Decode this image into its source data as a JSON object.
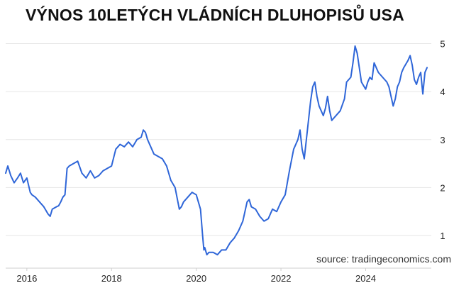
{
  "chart_data": {
    "type": "line",
    "title": "VÝNOS 10LETÝCH VLÁDNÍCH DLUHOPISŮ USA",
    "source": "source: tradingeconomics.com",
    "xlabel": "",
    "ylabel": "",
    "xlim": [
      2015.5,
      2025.55
    ],
    "ylim": [
      0.35,
      5.2
    ],
    "x_ticks": [
      {
        "value": 2016,
        "label": "2016"
      },
      {
        "value": 2018,
        "label": "2018"
      },
      {
        "value": 2020,
        "label": "2020"
      },
      {
        "value": 2022,
        "label": "2022"
      },
      {
        "value": 2024,
        "label": "2024"
      }
    ],
    "y_ticks": [
      {
        "value": 1,
        "label": "1"
      },
      {
        "value": 2,
        "label": "2"
      },
      {
        "value": 3,
        "label": "3"
      },
      {
        "value": 4,
        "label": "4"
      },
      {
        "value": 5,
        "label": "5"
      }
    ],
    "grid": true,
    "line_color": "#2f66d8",
    "series": [
      {
        "x": [
          2015.5,
          2015.55,
          2015.62,
          2015.7,
          2015.78,
          2015.85,
          2015.92,
          2016.0,
          2016.08,
          2016.12,
          2016.2,
          2016.3,
          2016.4,
          2016.5,
          2016.55,
          2016.6,
          2016.7,
          2016.75,
          2016.8,
          2016.85,
          2016.9,
          2016.95,
          2017.0,
          2017.1,
          2017.2,
          2017.3,
          2017.4,
          2017.5,
          2017.6,
          2017.7,
          2017.8,
          2017.9,
          2018.0,
          2018.1,
          2018.2,
          2018.3,
          2018.4,
          2018.5,
          2018.6,
          2018.7,
          2018.75,
          2018.8,
          2018.85,
          2018.9,
          2019.0,
          2019.1,
          2019.2,
          2019.3,
          2019.4,
          2019.5,
          2019.6,
          2019.65,
          2019.7,
          2019.8,
          2019.9,
          2020.0,
          2020.05,
          2020.1,
          2020.15,
          2020.18,
          2020.2,
          2020.25,
          2020.3,
          2020.4,
          2020.5,
          2020.6,
          2020.7,
          2020.8,
          2020.9,
          2021.0,
          2021.1,
          2021.2,
          2021.25,
          2021.3,
          2021.4,
          2021.5,
          2021.6,
          2021.7,
          2021.8,
          2021.9,
          2022.0,
          2022.1,
          2022.2,
          2022.3,
          2022.35,
          2022.4,
          2022.45,
          2022.5,
          2022.55,
          2022.6,
          2022.7,
          2022.75,
          2022.8,
          2022.85,
          2022.9,
          2023.0,
          2023.05,
          2023.1,
          2023.15,
          2023.2,
          2023.3,
          2023.4,
          2023.5,
          2023.55,
          2023.6,
          2023.65,
          2023.7,
          2023.75,
          2023.8,
          2023.85,
          2023.9,
          2024.0,
          2024.05,
          2024.1,
          2024.15,
          2024.2,
          2024.3,
          2024.4,
          2024.5,
          2024.55,
          2024.6,
          2024.65,
          2024.7,
          2024.75,
          2024.8,
          2024.85,
          2024.9,
          2025.0,
          2025.05,
          2025.1,
          2025.15,
          2025.2,
          2025.25,
          2025.3,
          2025.35,
          2025.4,
          2025.45
        ],
        "y": [
          2.3,
          2.45,
          2.25,
          2.1,
          2.2,
          2.3,
          2.1,
          2.2,
          1.9,
          1.85,
          1.8,
          1.7,
          1.6,
          1.45,
          1.4,
          1.55,
          1.6,
          1.62,
          1.7,
          1.8,
          1.85,
          2.4,
          2.45,
          2.5,
          2.55,
          2.3,
          2.2,
          2.35,
          2.2,
          2.25,
          2.35,
          2.4,
          2.45,
          2.8,
          2.9,
          2.85,
          2.95,
          2.85,
          3.0,
          3.05,
          3.2,
          3.15,
          3.0,
          2.9,
          2.7,
          2.65,
          2.6,
          2.45,
          2.15,
          2.0,
          1.55,
          1.6,
          1.7,
          1.8,
          1.9,
          1.85,
          1.7,
          1.55,
          1.0,
          0.7,
          0.75,
          0.6,
          0.65,
          0.65,
          0.6,
          0.7,
          0.7,
          0.85,
          0.95,
          1.1,
          1.3,
          1.7,
          1.75,
          1.6,
          1.55,
          1.4,
          1.3,
          1.35,
          1.55,
          1.5,
          1.7,
          1.85,
          2.35,
          2.8,
          2.9,
          3.0,
          3.2,
          2.8,
          2.6,
          3.0,
          3.8,
          4.1,
          4.2,
          3.9,
          3.7,
          3.5,
          3.65,
          3.9,
          3.6,
          3.4,
          3.5,
          3.6,
          3.85,
          4.2,
          4.25,
          4.3,
          4.6,
          4.95,
          4.8,
          4.5,
          4.2,
          4.05,
          4.2,
          4.3,
          4.25,
          4.6,
          4.4,
          4.3,
          4.2,
          4.1,
          3.9,
          3.7,
          3.85,
          4.1,
          4.2,
          4.4,
          4.5,
          4.65,
          4.75,
          4.55,
          4.25,
          4.15,
          4.3,
          4.4,
          3.95,
          4.4,
          4.5
        ]
      }
    ]
  }
}
